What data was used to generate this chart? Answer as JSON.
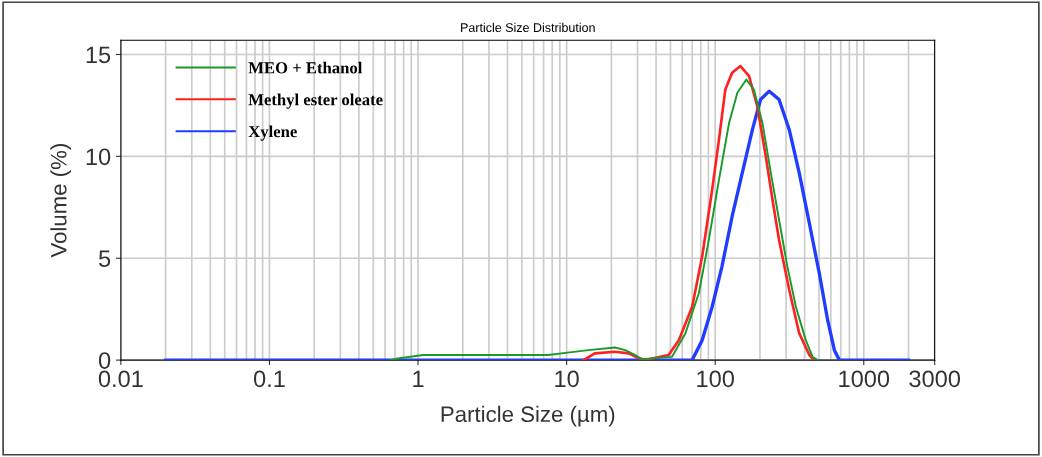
{
  "chart_data": {
    "type": "line",
    "title": "Particle Size Distribution",
    "xlabel": "Particle Size (µm)",
    "ylabel": "Volume (%)",
    "log": "x",
    "xlim": [
      0.01,
      3000
    ],
    "xticks": [
      0.01,
      0.1,
      1,
      10,
      100,
      1000,
      3000
    ],
    "ylim": [
      0,
      15.7
    ],
    "yticks": [
      0,
      5,
      10,
      15
    ],
    "grid": true,
    "legend": "top left",
    "marker": "none",
    "line_style": "solid",
    "series": [
      {
        "name": "MEO + Ethanol",
        "color": "#1a9a2a",
        "x": [
          0.65,
          0.73,
          1.08,
          7.5,
          10.5,
          14,
          21.2,
          24.8,
          29,
          32,
          51.2,
          63,
          77.6,
          90.6,
          106,
          124,
          141,
          162,
          182,
          208,
          237,
          269,
          306,
          349,
          407,
          452,
          489
        ],
        "values": [
          0,
          0.08,
          0.25,
          0.25,
          0.38,
          0.49,
          0.62,
          0.49,
          0.25,
          0.05,
          0.16,
          1.31,
          3.28,
          5.9,
          8.85,
          11.64,
          13.12,
          13.77,
          13.28,
          11.64,
          9.18,
          6.89,
          4.59,
          2.62,
          0.98,
          0.16,
          0
        ]
      },
      {
        "name": "Methyl ester oleate",
        "color": "#ff2020",
        "x": [
          13,
          15.5,
          21.2,
          26.1,
          30.5,
          33.8,
          48.6,
          56.9,
          70,
          81.7,
          95.4,
          106,
          117,
          130,
          148,
          169,
          192,
          219,
          243,
          269,
          315,
          368,
          430,
          464
        ],
        "values": [
          0,
          0.33,
          0.41,
          0.33,
          0.1,
          0,
          0.25,
          0.98,
          2.62,
          5.08,
          8.36,
          10.82,
          13.28,
          14.1,
          14.43,
          13.94,
          12.46,
          10.0,
          7.87,
          5.9,
          3.44,
          1.31,
          0.25,
          0
        ]
      },
      {
        "name": "Xylene",
        "color": "#1f3cff",
        "x": [
          0.02,
          70,
          81.7,
          95.4,
          111,
          130,
          152,
          178,
          202,
          231,
          269,
          315,
          368,
          430,
          502,
          571,
          634,
          685,
          2000
        ],
        "values": [
          0,
          0,
          0.98,
          2.62,
          4.59,
          7.05,
          9.18,
          11.31,
          12.79,
          13.2,
          12.79,
          11.31,
          9.18,
          6.72,
          4.26,
          1.97,
          0.49,
          0,
          0
        ]
      }
    ]
  }
}
